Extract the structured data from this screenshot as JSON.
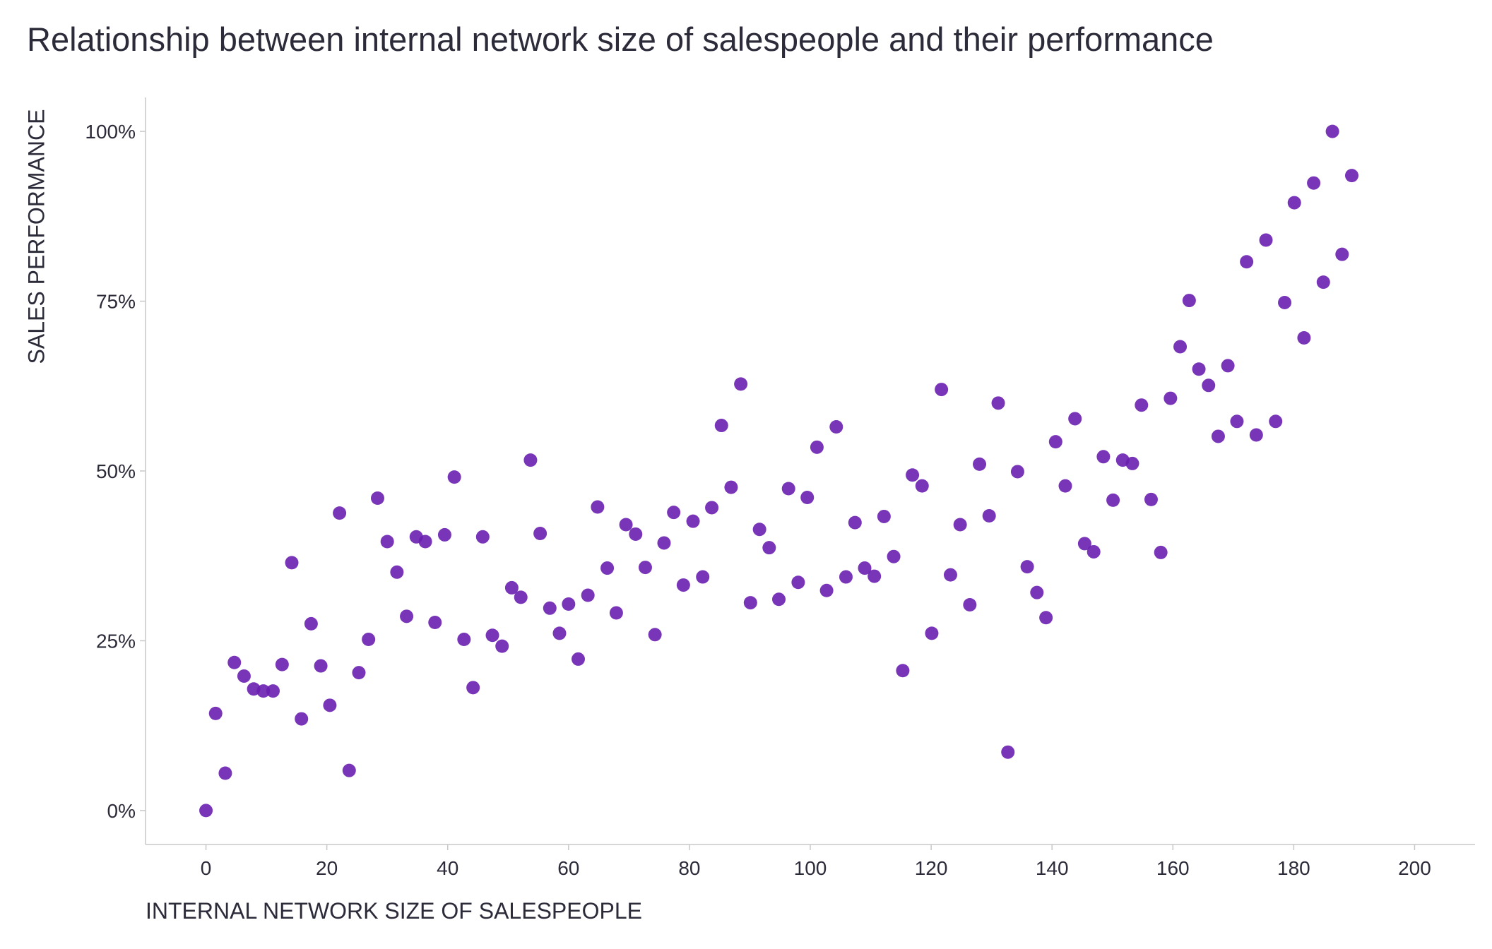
{
  "chart_data": {
    "type": "scatter",
    "title": "Relationship between internal network size of salespeople and their performance",
    "xlabel": "INTERNAL NETWORK SIZE OF SALESPEOPLE",
    "ylabel": "SALES PERFORMANCE",
    "xlim": [
      -10,
      210
    ],
    "ylim": [
      -5,
      105
    ],
    "x_ticks": [
      0,
      20,
      40,
      60,
      80,
      100,
      120,
      140,
      160,
      180,
      200
    ],
    "x_tick_labels": [
      "0",
      "20",
      "40",
      "60",
      "80",
      "100",
      "120",
      "140",
      "160",
      "180",
      "200"
    ],
    "y_ticks": [
      0,
      25,
      50,
      75,
      100
    ],
    "y_tick_labels": [
      "0%",
      "25%",
      "50%",
      "75%",
      "100%"
    ],
    "grid": false,
    "point_color": "#6a1fb0",
    "series": [
      {
        "x": [
          0,
          1.6,
          3.2,
          4.7,
          6.3,
          7.9,
          9.5,
          11.1,
          12.6,
          14.2,
          15.8,
          17.4,
          19,
          20.5,
          22.1,
          23.7,
          25.3,
          26.9,
          28.4,
          30,
          31.6,
          33.2,
          34.8,
          36.3,
          37.9,
          39.5,
          41.1,
          42.7,
          44.2,
          45.8,
          47.4,
          49,
          50.6,
          52.1,
          53.7,
          55.3,
          56.9,
          58.5,
          60,
          61.6,
          63.2,
          64.8,
          66.4,
          67.9,
          69.5,
          71.1,
          72.7,
          74.3,
          75.8,
          77.4,
          79,
          80.6,
          82.2,
          83.7,
          85.3,
          86.9,
          88.5,
          90.1,
          91.6,
          93.2,
          94.8,
          96.4,
          98,
          99.5,
          101.1,
          102.7,
          104.3,
          105.9,
          107.4,
          109,
          110.6,
          112.2,
          113.8,
          115.3,
          116.9,
          118.5,
          120.1,
          121.7,
          123.2,
          124.8,
          126.4,
          128,
          129.6,
          131.1,
          132.7,
          134.3,
          135.9,
          137.5,
          139,
          140.6,
          142.2,
          143.8,
          145.4,
          146.9,
          148.5,
          150.1,
          151.7,
          153.3,
          154.8,
          156.4,
          158,
          159.6,
          161.2,
          162.7,
          164.3,
          165.9,
          167.5,
          169.1,
          170.6,
          172.2,
          173.8,
          175.4,
          177,
          178.5,
          180.1,
          181.7,
          183.3,
          184.9,
          186.4,
          188,
          189.6
        ],
        "y": [
          0,
          14.3,
          5.5,
          21.8,
          19.8,
          17.9,
          17.6,
          17.6,
          21.5,
          36.5,
          13.5,
          27.5,
          21.3,
          15.5,
          43.8,
          5.9,
          20.3,
          25.2,
          46,
          39.6,
          35.1,
          28.6,
          40.3,
          39.6,
          27.7,
          40.6,
          49.1,
          25.2,
          18.1,
          40.3,
          25.8,
          24.2,
          32.8,
          31.4,
          51.6,
          40.8,
          29.8,
          26.1,
          30.4,
          22.3,
          31.7,
          44.7,
          35.7,
          29.1,
          42.1,
          40.7,
          35.8,
          25.9,
          39.4,
          43.9,
          33.2,
          42.6,
          34.4,
          44.6,
          56.7,
          47.6,
          62.8,
          30.6,
          41.4,
          38.7,
          31.1,
          47.4,
          33.6,
          46.1,
          53.5,
          32.4,
          56.5,
          34.4,
          42.4,
          35.7,
          34.5,
          43.3,
          37.4,
          20.6,
          49.4,
          47.8,
          26.1,
          62,
          34.7,
          42.1,
          30.3,
          51,
          43.4,
          60,
          8.6,
          49.9,
          35.9,
          32.1,
          28.4,
          54.3,
          47.8,
          57.7,
          39.3,
          38.1,
          52.1,
          45.7,
          51.6,
          51.1,
          59.7,
          45.8,
          38,
          60.7,
          68.3,
          75.1,
          65,
          62.6,
          55.1,
          65.5,
          57.3,
          80.8,
          55.3,
          84,
          57.3,
          74.8,
          89.5,
          69.6,
          92.4,
          77.8,
          100,
          81.9,
          93.5
        ]
      }
    ]
  }
}
